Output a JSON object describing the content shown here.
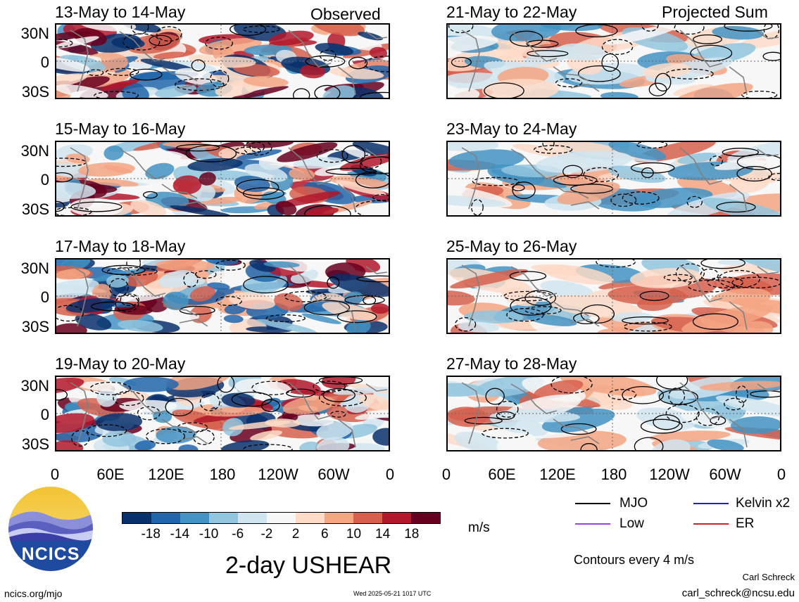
{
  "figure": {
    "main_title": "2-day USHEAR",
    "units": "m/s",
    "contour_note": "Contours every 4 m/s",
    "author": "Carl Schreck",
    "email": "carl_schreck@ncsu.edu",
    "website": "ncics.org/mjo",
    "timestamp": "Wed 2025-05-21 1017 UTC",
    "logo_text": "NCICS"
  },
  "columns": {
    "left_label": "Observed",
    "right_label": "Projected Sum"
  },
  "axes": {
    "y_ticks": [
      "30N",
      "0",
      "30S"
    ],
    "x_ticks": [
      "0",
      "60E",
      "120E",
      "180",
      "120W",
      "60W",
      "0"
    ]
  },
  "panels": {
    "left": [
      {
        "title": "13-May to 14-May"
      },
      {
        "title": "15-May to 16-May"
      },
      {
        "title": "17-May to 18-May"
      },
      {
        "title": "19-May to 20-May"
      }
    ],
    "right": [
      {
        "title": "21-May to 22-May"
      },
      {
        "title": "23-May to 24-May"
      },
      {
        "title": "25-May to 26-May"
      },
      {
        "title": "27-May to 28-May"
      }
    ]
  },
  "colorbar": {
    "labels": [
      "-18",
      "-14",
      "-10",
      "-6",
      "-2",
      "2",
      "6",
      "10",
      "14",
      "18"
    ],
    "colors": [
      "#08306b",
      "#2166ac",
      "#4393c3",
      "#92c5de",
      "#d1e5f0",
      "#f7f7f7",
      "#fddbc7",
      "#f4a582",
      "#d6604d",
      "#b2182b",
      "#67001f"
    ]
  },
  "legend": {
    "mjo": {
      "label": "MJO",
      "color": "#000000"
    },
    "kelvin": {
      "label": "Kelvin x2",
      "color": "#1f1fd6"
    },
    "low": {
      "label": "Low",
      "color": "#a040e0"
    },
    "er": {
      "label": "ER",
      "color": "#d42020"
    }
  }
}
